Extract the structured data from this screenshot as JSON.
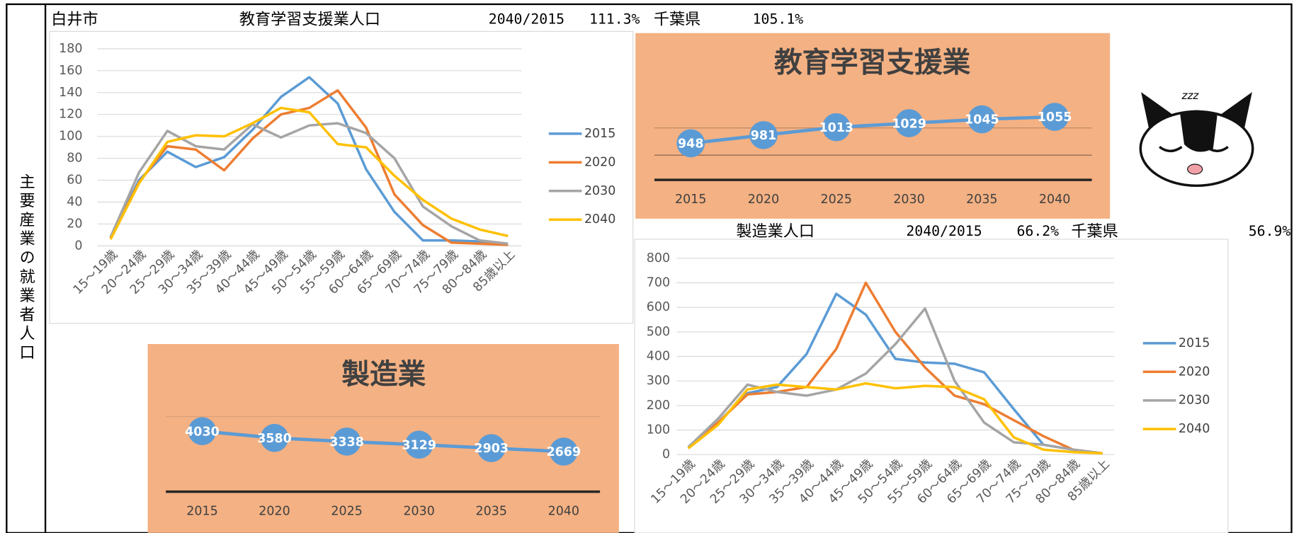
{
  "side_label": "主要産業の就業者人口",
  "header": {
    "city": "白井市",
    "industry": "教育学習支援業人口",
    "ratio_label": "2040/2015",
    "ratio": "111.3%",
    "pref": "千葉県",
    "pref_ratio": "105.1%"
  },
  "header2": {
    "industry": "製造業人口",
    "ratio_label": "2040/2015",
    "ratio": "66.2%",
    "pref": "千葉県",
    "pref_ratio": "56.9%"
  },
  "illustration": {
    "text": "zzz"
  },
  "chart_data": [
    {
      "type": "line",
      "categories": [
        "15～19歳",
        "20～24歳",
        "25～29歳",
        "30～34歳",
        "35～39歳",
        "40～44歳",
        "45～49歳",
        "50～54歳",
        "55～59歳",
        "60～64歳",
        "65～69歳",
        "70～74歳",
        "75～79歳",
        "80～84歳",
        "85歳以上"
      ],
      "ylim": [
        0,
        180
      ],
      "yticks": [
        0,
        20,
        40,
        60,
        80,
        100,
        120,
        140,
        160,
        180
      ],
      "grid": true,
      "legend": "right",
      "series": [
        {
          "name": "2015",
          "color": "#5B9BD5",
          "values": [
            7,
            60,
            86,
            72,
            81,
            106,
            136,
            154,
            130,
            70,
            31,
            5,
            5,
            4,
            1
          ]
        },
        {
          "name": "2020",
          "color": "#ED7D31",
          "values": [
            7,
            58,
            91,
            88,
            69,
            98,
            120,
            126,
            142,
            108,
            47,
            19,
            3,
            2,
            1
          ]
        },
        {
          "name": "2030",
          "color": "#A5A5A5",
          "values": [
            8,
            67,
            105,
            91,
            88,
            111,
            99,
            110,
            112,
            103,
            80,
            36,
            18,
            5,
            2
          ]
        },
        {
          "name": "2040",
          "color": "#FFC000",
          "values": [
            6,
            57,
            95,
            101,
            100,
            112,
            126,
            122,
            93,
            90,
            64,
            42,
            25,
            15,
            9
          ]
        }
      ]
    },
    {
      "type": "line",
      "title": "教育学習支援業",
      "categories": [
        "2015",
        "2020",
        "2025",
        "2030",
        "2035",
        "2040"
      ],
      "values": [
        948,
        981,
        1013,
        1029,
        1045,
        1055
      ],
      "color": "#5B9BD5",
      "ylim": [
        800,
        1100
      ]
    },
    {
      "type": "line",
      "title": "製造業",
      "categories": [
        "2015",
        "2020",
        "2025",
        "2030",
        "2035",
        "2040"
      ],
      "values": [
        4030,
        3580,
        3338,
        3129,
        2903,
        2669
      ],
      "color": "#5B9BD5",
      "ylim": [
        0,
        5000
      ]
    },
    {
      "type": "line",
      "categories": [
        "15～19歳",
        "20～24歳",
        "25～29歳",
        "30～34歳",
        "35～39歳",
        "40～44歳",
        "45～49歳",
        "50～54歳",
        "55～59歳",
        "60～64歳",
        "65～69歳",
        "70～74歳",
        "75～79歳",
        "80～84歳",
        "85歳以上"
      ],
      "ylim": [
        0,
        800
      ],
      "yticks": [
        0,
        100,
        200,
        300,
        400,
        500,
        600,
        700,
        800
      ],
      "grid": true,
      "legend": "right",
      "series": [
        {
          "name": "2015",
          "color": "#5B9BD5",
          "values": [
            30,
            130,
            250,
            275,
            410,
            655,
            570,
            390,
            375,
            370,
            335,
            185,
            40,
            20,
            5
          ]
        },
        {
          "name": "2020",
          "color": "#ED7D31",
          "values": [
            30,
            130,
            245,
            255,
            275,
            430,
            700,
            500,
            355,
            240,
            205,
            140,
            75,
            20,
            5
          ]
        },
        {
          "name": "2030",
          "color": "#A5A5A5",
          "values": [
            30,
            145,
            285,
            255,
            240,
            265,
            330,
            450,
            595,
            300,
            130,
            50,
            40,
            20,
            5
          ]
        },
        {
          "name": "2040",
          "color": "#FFC000",
          "values": [
            25,
            120,
            265,
            285,
            275,
            265,
            290,
            270,
            280,
            275,
            225,
            70,
            20,
            10,
            5
          ]
        }
      ]
    }
  ]
}
